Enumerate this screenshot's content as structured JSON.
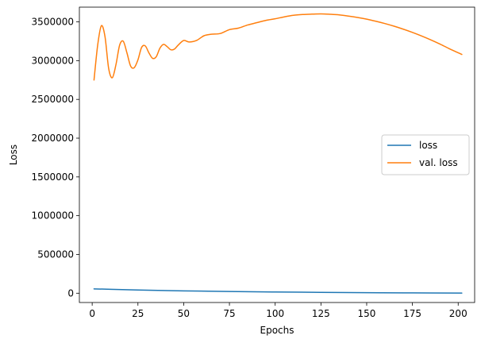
{
  "chart_data": {
    "type": "line",
    "title": "",
    "xlabel": "Epochs",
    "ylabel": "Loss",
    "xlim": [
      -7,
      209
    ],
    "ylim": [
      -120000,
      3690000
    ],
    "xticks": [
      0,
      25,
      50,
      75,
      100,
      125,
      150,
      175,
      200
    ],
    "yticks": [
      0,
      500000,
      1000000,
      1500000,
      2000000,
      2500000,
      3000000,
      3500000
    ],
    "grid": false,
    "legend_position": "center-right",
    "series": [
      {
        "name": "loss",
        "color": "#1f77b4",
        "x": [
          1,
          10,
          25,
          50,
          75,
          100,
          125,
          150,
          175,
          202
        ],
        "y": [
          56000,
          50000,
          41000,
          30000,
          22000,
          16000,
          11000,
          7000,
          4000,
          1500
        ]
      },
      {
        "name": "val. loss",
        "color": "#ff7f0e",
        "x": [
          1,
          3,
          5,
          7,
          9,
          11,
          13,
          15,
          17,
          19,
          21,
          23,
          25,
          27,
          29,
          31,
          33,
          35,
          37,
          39,
          41,
          43,
          45,
          47,
          50,
          53,
          57,
          61,
          65,
          70,
          75,
          80,
          85,
          90,
          95,
          100,
          105,
          110,
          115,
          120,
          125,
          130,
          135,
          140,
          145,
          150,
          155,
          160,
          165,
          170,
          175,
          180,
          185,
          190,
          195,
          202
        ],
        "y": [
          2750000,
          3200000,
          3450000,
          3310000,
          2900000,
          2780000,
          2950000,
          3200000,
          3250000,
          3100000,
          2930000,
          2910000,
          3010000,
          3170000,
          3190000,
          3100000,
          3030000,
          3050000,
          3160000,
          3210000,
          3180000,
          3140000,
          3150000,
          3200000,
          3260000,
          3240000,
          3260000,
          3320000,
          3340000,
          3350000,
          3400000,
          3420000,
          3460000,
          3490000,
          3520000,
          3540000,
          3565000,
          3585000,
          3595000,
          3600000,
          3603000,
          3598000,
          3590000,
          3575000,
          3557000,
          3535000,
          3508000,
          3478000,
          3444000,
          3406000,
          3364000,
          3318000,
          3268000,
          3214000,
          3156000,
          3080000
        ]
      }
    ]
  }
}
